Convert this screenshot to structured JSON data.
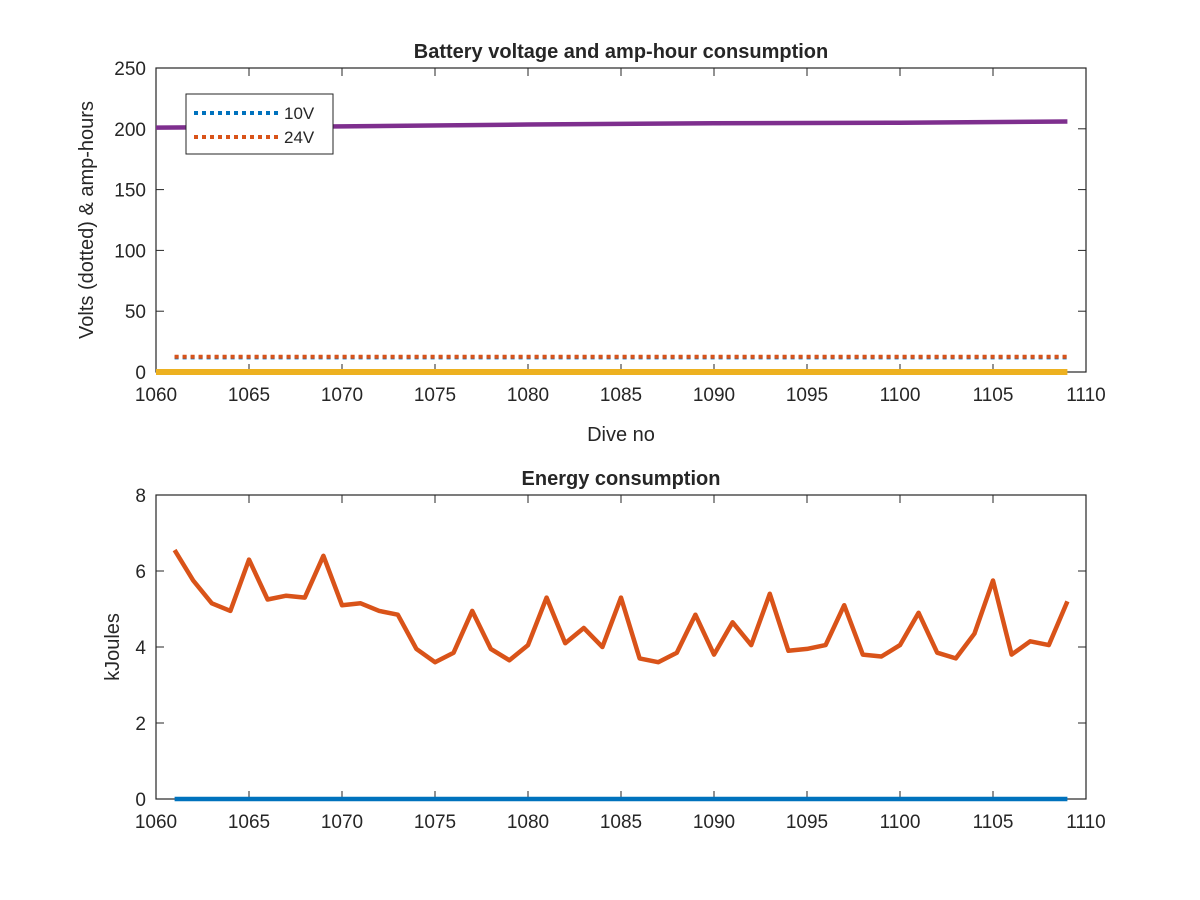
{
  "chart_data": [
    {
      "type": "line",
      "title": "Battery voltage and amp-hour consumption",
      "xlabel": "Dive no",
      "ylabel": "Volts (dotted) & amp-hours",
      "xlim": [
        1060,
        1110
      ],
      "ylim": [
        0,
        250
      ],
      "xticks": [
        "1060",
        "1065",
        "1070",
        "1075",
        "1080",
        "1085",
        "1090",
        "1095",
        "1100",
        "1105",
        "1110"
      ],
      "yticks": [
        "0",
        "50",
        "100",
        "150",
        "200",
        "250"
      ],
      "legend": {
        "placement": "top-left",
        "entries": [
          "10V",
          "24V"
        ]
      },
      "series": [
        {
          "name": "10V",
          "style": "dotted",
          "color": "#0072BD",
          "x": [
            1061,
            1109
          ],
          "values": [
            12,
            12
          ]
        },
        {
          "name": "24V",
          "style": "dotted",
          "color": "#D95319",
          "x": [
            1061,
            1109
          ],
          "values": [
            12.5,
            12.5
          ]
        },
        {
          "style": "solid",
          "color": "#EDB120",
          "x": [
            1060,
            1109
          ],
          "values": [
            0,
            0
          ]
        },
        {
          "style": "solid",
          "color": "#7E2F8E",
          "x": [
            1060,
            1070,
            1080,
            1090,
            1100,
            1109
          ],
          "values": [
            201,
            202,
            203.5,
            204.5,
            205,
            206
          ]
        }
      ]
    },
    {
      "type": "line",
      "title": "Energy consumption",
      "xlabel": "",
      "ylabel": "kJoules",
      "xlim": [
        1060,
        1110
      ],
      "ylim": [
        0,
        8
      ],
      "xticks": [
        "1060",
        "1065",
        "1070",
        "1075",
        "1080",
        "1085",
        "1090",
        "1095",
        "1100",
        "1105",
        "1110"
      ],
      "yticks": [
        "0",
        "2",
        "4",
        "6",
        "8"
      ],
      "series": [
        {
          "style": "solid",
          "color": "#0072BD",
          "x": [
            1061,
            1109
          ],
          "values": [
            0,
            0
          ]
        },
        {
          "style": "solid",
          "color": "#D95319",
          "x": [
            1061,
            1062,
            1063,
            1064,
            1065,
            1066,
            1067,
            1068,
            1069,
            1070,
            1071,
            1072,
            1073,
            1074,
            1075,
            1076,
            1077,
            1078,
            1079,
            1080,
            1081,
            1082,
            1083,
            1084,
            1085,
            1086,
            1087,
            1088,
            1089,
            1090,
            1091,
            1092,
            1093,
            1094,
            1095,
            1096,
            1097,
            1098,
            1099,
            1100,
            1101,
            1102,
            1103,
            1104,
            1105,
            1106,
            1107,
            1108,
            1109
          ],
          "values": [
            6.55,
            5.75,
            5.15,
            4.95,
            6.3,
            5.25,
            5.35,
            5.3,
            6.4,
            5.1,
            5.15,
            4.95,
            4.85,
            3.95,
            3.6,
            3.85,
            4.95,
            3.95,
            3.65,
            4.05,
            5.3,
            4.1,
            4.5,
            4.0,
            5.3,
            3.7,
            3.6,
            3.85,
            4.85,
            3.8,
            4.65,
            4.05,
            5.4,
            3.9,
            3.95,
            4.05,
            5.1,
            3.8,
            3.75,
            4.05,
            4.9,
            3.85,
            3.7,
            4.35,
            5.75,
            3.8,
            4.15,
            4.05,
            5.2
          ]
        }
      ]
    }
  ]
}
